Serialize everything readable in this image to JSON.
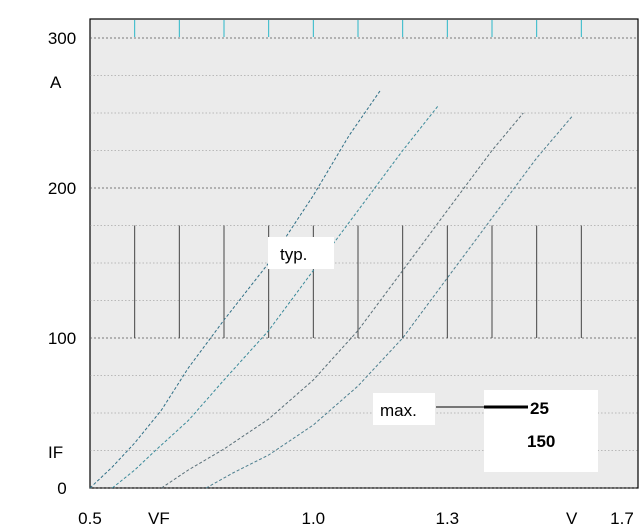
{
  "chart_data": {
    "type": "line",
    "title": "",
    "xlabel": "VF",
    "xunit": "V",
    "ylabel": "IF",
    "yunit": "A",
    "xlim": [
      0.5,
      1.7
    ],
    "ylim": [
      0,
      300
    ],
    "xticks": [
      {
        "value": 0.5,
        "label": "0.5"
      },
      {
        "value": 1.0,
        "label": "1.0"
      },
      {
        "value": 1.3,
        "label": "1.3"
      },
      {
        "value": 1.7,
        "label": "1.7"
      }
    ],
    "yticks": [
      {
        "value": 0,
        "label": "0"
      },
      {
        "value": 100,
        "label": "100"
      },
      {
        "value": 200,
        "label": "200"
      },
      {
        "value": 300,
        "label": "300"
      }
    ],
    "grid": true,
    "series": [
      {
        "group": "typ.",
        "temp": "25",
        "x": [
          0.5,
          0.55,
          0.6,
          0.66,
          0.72,
          0.8,
          0.9,
          1.0,
          1.08,
          1.15
        ],
        "y": [
          0,
          14,
          30,
          52,
          80,
          112,
          150,
          195,
          235,
          265
        ]
      },
      {
        "group": "typ.",
        "temp": "150",
        "x": [
          0.55,
          0.6,
          0.65,
          0.72,
          0.8,
          0.9,
          1.0,
          1.1,
          1.2,
          1.28
        ],
        "y": [
          0,
          12,
          26,
          45,
          72,
          105,
          145,
          185,
          225,
          255
        ]
      },
      {
        "group": "max.",
        "temp": "25",
        "x": [
          0.66,
          0.72,
          0.8,
          0.9,
          1.0,
          1.1,
          1.2,
          1.3,
          1.4,
          1.47
        ],
        "y": [
          0,
          12,
          26,
          46,
          72,
          105,
          145,
          185,
          225,
          250
        ]
      },
      {
        "group": "max.",
        "temp": "150",
        "x": [
          0.76,
          0.82,
          0.9,
          1.0,
          1.1,
          1.2,
          1.3,
          1.4,
          1.5,
          1.58
        ],
        "y": [
          0,
          10,
          22,
          42,
          68,
          100,
          140,
          180,
          220,
          248
        ]
      }
    ],
    "annotations": {
      "typ_label": "typ.",
      "max_label": "max.",
      "temp_a": "25",
      "temp_b": "150"
    }
  }
}
